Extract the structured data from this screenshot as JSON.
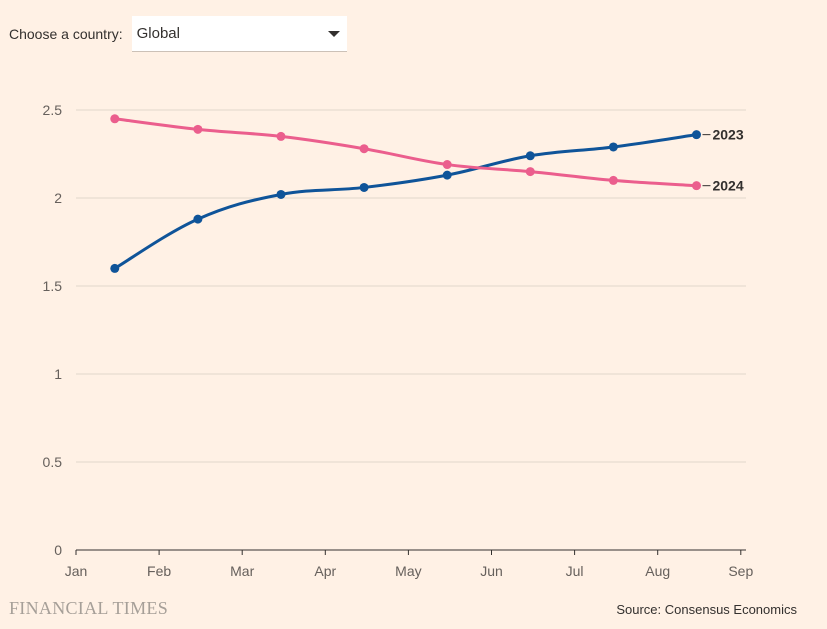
{
  "controls": {
    "country_label": "Choose a country:",
    "country_value": "Global"
  },
  "chart_data": {
    "type": "line",
    "title": "",
    "xlabel": "",
    "ylabel": "",
    "x_ticks": [
      "Jan",
      "Feb",
      "Mar",
      "Apr",
      "May",
      "Jun",
      "Jul",
      "Aug",
      "Sep"
    ],
    "y_ticks": [
      "0",
      "0.5",
      "1",
      "1.5",
      "2",
      "2.5"
    ],
    "ylim": [
      0,
      2.5
    ],
    "grid": true,
    "legend": "direct labels at line ends",
    "x": [
      "Jan 15",
      "Feb 15",
      "Mar 15",
      "Apr 15",
      "May 15",
      "Jun 15",
      "Jul 15",
      "Aug 15"
    ],
    "series": [
      {
        "name": "2023",
        "color": "#0f5499",
        "values": [
          1.6,
          1.88,
          2.02,
          2.06,
          2.13,
          2.24,
          2.29,
          2.36
        ]
      },
      {
        "name": "2024",
        "color": "#eb5e8d",
        "values": [
          2.45,
          2.39,
          2.35,
          2.28,
          2.19,
          2.15,
          2.1,
          2.07
        ]
      }
    ]
  },
  "footer": {
    "logo": "FINANCIAL TIMES",
    "source": "Source: Consensus Economics"
  }
}
